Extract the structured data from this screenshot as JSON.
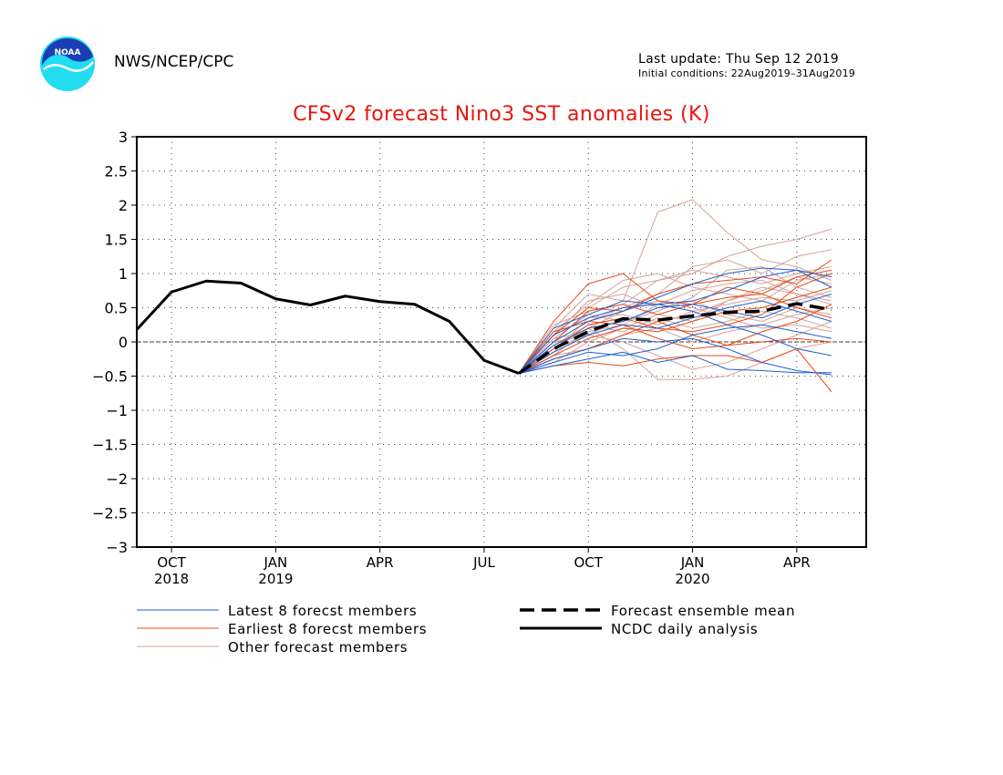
{
  "header": {
    "organization": "NWS/NCEP/CPC",
    "last_update": "Last update: Thu Sep 12 2019",
    "initial_conditions": "Initial conditions: 22Aug2019–31Aug2019",
    "logo_text": "NOAA"
  },
  "colors": {
    "title": "#e8160c",
    "latest_members": "#1f5fd1",
    "earliest_members": "#e84a18",
    "other_members": "#d4a39a",
    "analysis": "#000000",
    "ensemble_mean": "#000000",
    "logo_blue": "#1a3fb5",
    "logo_cyan": "#22dcef"
  },
  "chart_data": {
    "type": "line",
    "title": "CFSv2 forecast Nino3 SST anomalies (K)",
    "ylim": [
      -3,
      3
    ],
    "yticks": [
      3,
      2.5,
      2,
      1.5,
      1,
      0.5,
      0,
      -0.5,
      -1,
      -1.5,
      -2,
      -2.5,
      -3
    ],
    "ytick_labels": [
      "3",
      "2.5",
      "2",
      "1.5",
      "1",
      "0.5",
      "0",
      "−0.5",
      "−1",
      "−1.5",
      "−2",
      "−2.5",
      "−3"
    ],
    "xlim": [
      "2018-09",
      "2020-06"
    ],
    "xticks": [
      {
        "x": "2018-10",
        "label": "OCT",
        "year": "2018"
      },
      {
        "x": "2019-01",
        "label": "JAN",
        "year": "2019"
      },
      {
        "x": "2019-04",
        "label": "APR",
        "year": ""
      },
      {
        "x": "2019-07",
        "label": "JUL",
        "year": ""
      },
      {
        "x": "2019-10",
        "label": "OCT",
        "year": ""
      },
      {
        "x": "2020-01",
        "label": "JAN",
        "year": "2020"
      },
      {
        "x": "2020-04",
        "label": "APR",
        "year": ""
      }
    ],
    "grid": true,
    "zero_line": true,
    "legend": {
      "placement": "bottom",
      "latest": "Latest 8 forecst members",
      "earliest": "Earliest 8 forecst members",
      "other": "Other forecast members",
      "mean": "Forecast ensemble mean",
      "analysis": "NCDC daily analysis"
    },
    "analysis": {
      "x": [
        "2018-09",
        "2018-10",
        "2018-11",
        "2018-12",
        "2019-01",
        "2019-02",
        "2019-03",
        "2019-04",
        "2019-05",
        "2019-06",
        "2019-07",
        "2019-08"
      ],
      "y": [
        0.18,
        0.73,
        0.89,
        0.86,
        0.63,
        0.54,
        0.67,
        0.59,
        0.55,
        0.3,
        -0.27,
        -0.46
      ]
    },
    "ensemble_mean": {
      "x": [
        "2019-08",
        "2019-09",
        "2019-10",
        "2019-11",
        "2019-12",
        "2020-01",
        "2020-02",
        "2020-03",
        "2020-04",
        "2020-05"
      ],
      "y": [
        -0.46,
        -0.1,
        0.15,
        0.34,
        0.32,
        0.38,
        0.43,
        0.45,
        0.56,
        0.47
      ]
    },
    "members_x": [
      "2019-08",
      "2019-09",
      "2019-10",
      "2019-11",
      "2019-12",
      "2020-01",
      "2020-02",
      "2020-03",
      "2020-04",
      "2020-05"
    ],
    "latest_members": [
      [
        -0.46,
        0.1,
        0.35,
        0.5,
        0.55,
        0.6,
        0.75,
        0.95,
        1.05,
        0.8
      ],
      [
        -0.46,
        -0.15,
        0.1,
        0.25,
        0.2,
        0.35,
        0.5,
        0.6,
        0.45,
        0.3
      ],
      [
        -0.46,
        -0.25,
        -0.1,
        0.05,
        0.0,
        0.05,
        -0.1,
        -0.3,
        -0.42,
        -0.48
      ],
      [
        -0.46,
        0.0,
        0.3,
        0.45,
        0.65,
        0.85,
        1.0,
        1.08,
        1.05,
        0.95
      ],
      [
        -0.46,
        -0.3,
        -0.15,
        -0.2,
        -0.1,
        0.1,
        0.2,
        0.25,
        0.15,
        0.05
      ],
      [
        -0.46,
        -0.05,
        0.2,
        0.3,
        0.5,
        0.55,
        0.45,
        0.35,
        0.55,
        0.7
      ],
      [
        -0.46,
        0.2,
        0.4,
        0.6,
        0.55,
        0.45,
        0.25,
        0.1,
        -0.1,
        -0.2
      ],
      [
        -0.46,
        -0.35,
        -0.25,
        -0.15,
        -0.3,
        -0.2,
        -0.4,
        -0.42,
        -0.45,
        -0.45
      ]
    ],
    "earliest_members": [
      [
        -0.46,
        0.3,
        0.85,
        1.0,
        0.6,
        0.55,
        0.65,
        0.7,
        0.95,
        1.05
      ],
      [
        -0.46,
        0.1,
        0.5,
        0.45,
        0.7,
        0.85,
        0.9,
        0.95,
        0.85,
        1.2
      ],
      [
        -0.46,
        -0.2,
        0.05,
        0.2,
        0.15,
        0.3,
        0.45,
        0.5,
        0.65,
        0.8
      ],
      [
        -0.46,
        -0.35,
        -0.3,
        -0.35,
        -0.25,
        -0.2,
        -0.2,
        -0.3,
        -0.1,
        -0.73
      ],
      [
        -0.46,
        0.0,
        0.45,
        0.55,
        0.4,
        0.55,
        0.8,
        0.7,
        0.5,
        0.35
      ],
      [
        -0.46,
        -0.25,
        -0.1,
        0.1,
        0.3,
        0.1,
        -0.05,
        0.0,
        0.05,
        0.0
      ],
      [
        -0.46,
        0.15,
        0.3,
        0.25,
        0.05,
        -0.1,
        -0.05,
        0.15,
        0.3,
        0.55
      ],
      [
        -0.46,
        -0.1,
        0.25,
        0.35,
        0.2,
        0.15,
        0.25,
        0.4,
        0.8,
        1.0
      ]
    ],
    "other_members": [
      [
        -0.46,
        0.2,
        0.7,
        0.6,
        1.9,
        2.08,
        1.6,
        1.2,
        1.1,
        0.9
      ],
      [
        -0.46,
        0.1,
        0.5,
        0.8,
        0.9,
        1.0,
        1.25,
        1.4,
        1.5,
        1.65
      ],
      [
        -0.46,
        -0.2,
        0.2,
        -0.1,
        -0.55,
        -0.55,
        -0.5,
        -0.3,
        -0.1,
        0.0
      ],
      [
        -0.46,
        0.0,
        0.3,
        0.5,
        0.7,
        1.1,
        1.2,
        1.0,
        1.25,
        1.35
      ],
      [
        -0.46,
        -0.3,
        0.0,
        0.2,
        0.4,
        0.3,
        0.6,
        0.8,
        0.7,
        0.6
      ],
      [
        -0.46,
        0.1,
        0.6,
        0.7,
        0.5,
        0.6,
        0.4,
        0.3,
        0.5,
        0.4
      ],
      [
        -0.46,
        -0.1,
        0.1,
        0.0,
        -0.2,
        -0.4,
        -0.3,
        -0.1,
        0.1,
        0.3
      ],
      [
        -0.46,
        0.25,
        0.45,
        0.55,
        0.9,
        1.05,
        0.95,
        0.85,
        1.0,
        1.1
      ],
      [
        -0.46,
        -0.15,
        0.35,
        0.4,
        0.25,
        0.45,
        0.55,
        0.65,
        0.6,
        0.75
      ],
      [
        -0.46,
        0.05,
        0.15,
        0.25,
        0.55,
        0.75,
        0.85,
        0.9,
        0.7,
        0.55
      ],
      [
        -0.46,
        -0.05,
        0.25,
        0.15,
        0.35,
        0.2,
        0.3,
        0.45,
        0.35,
        0.2
      ],
      [
        -0.46,
        0.15,
        0.55,
        0.9,
        1.0,
        0.8,
        0.7,
        0.6,
        0.9,
        1.0
      ],
      [
        -0.46,
        -0.2,
        -0.1,
        0.1,
        0.2,
        0.0,
        0.15,
        0.25,
        0.4,
        0.5
      ],
      [
        -0.46,
        0.05,
        0.4,
        0.3,
        0.45,
        0.65,
        1.05,
        1.1,
        0.8,
        0.65
      ],
      [
        -0.46,
        -0.1,
        0.2,
        0.45,
        0.6,
        0.5,
        0.35,
        0.2,
        0.25,
        0.15
      ],
      [
        -0.46,
        0.0,
        0.1,
        0.35,
        0.3,
        0.4,
        0.6,
        0.75,
        0.95,
        0.85
      ]
    ]
  }
}
